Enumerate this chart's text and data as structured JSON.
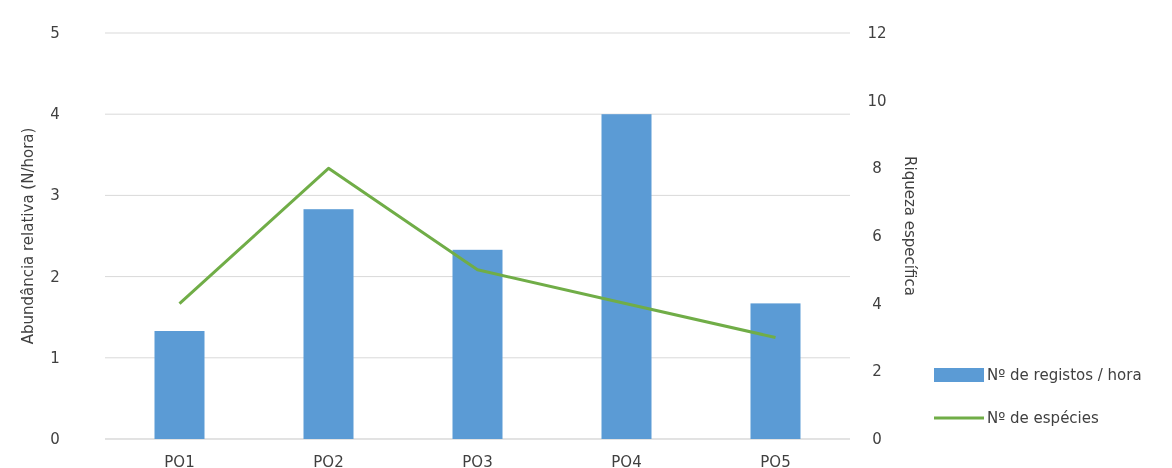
{
  "chart_data": {
    "type": "bar",
    "categories": [
      "PO1",
      "PO2",
      "PO3",
      "PO4",
      "PO5"
    ],
    "series": [
      {
        "name": "Nº de registos / hora",
        "color": "#5b9bd5",
        "values": [
          1.33,
          2.83,
          2.33,
          4,
          1.67
        ]
      },
      {
        "name": "Nº de espécies",
        "color": "#70ad47",
        "type": "line",
        "axis": "y2",
        "values": [
          4,
          8,
          5,
          4,
          3
        ]
      }
    ],
    "ylabel": "Abundância relativa (N/hora)",
    "y2label": "Riqueza específica",
    "ylim": [
      0,
      5
    ],
    "yticks": [
      0,
      1,
      2,
      3,
      4,
      5
    ],
    "y2lim": [
      0,
      12
    ],
    "y2ticks": [
      0,
      2,
      4,
      6,
      8,
      10,
      12
    ],
    "grid": "y",
    "legend": "right",
    "marker": "none"
  }
}
